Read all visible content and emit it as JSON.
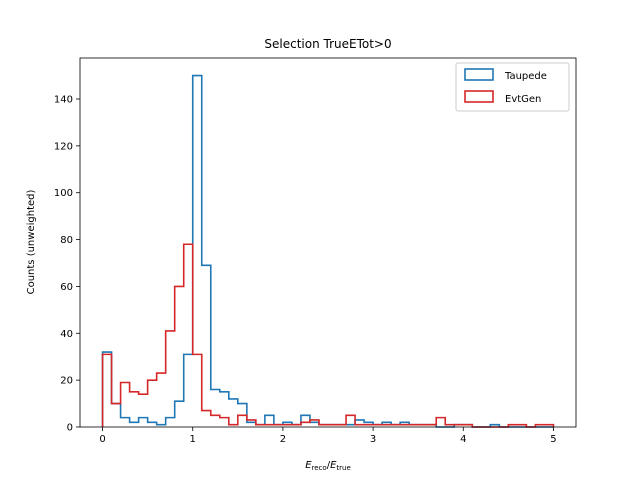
{
  "chart_data": {
    "type": "histogram-step",
    "title": "Selection TrueETot>0",
    "xlabel": {
      "main": "E",
      "sub1": "reco",
      "sep": "/",
      "sub2": "true"
    },
    "ylabel": "Counts (unweighted)",
    "xlim": [
      -0.25,
      5.25
    ],
    "ylim": [
      0,
      157.5
    ],
    "xticks": [
      0,
      1,
      2,
      3,
      4,
      5
    ],
    "yticks": [
      0,
      20,
      40,
      60,
      80,
      100,
      120,
      140
    ],
    "xtick_labels": [
      "0",
      "1",
      "2",
      "3",
      "4",
      "5"
    ],
    "ytick_labels": [
      "0",
      "20",
      "40",
      "60",
      "80",
      "100",
      "120",
      "140"
    ],
    "bin_edges": [
      0,
      0.1,
      0.2,
      0.3,
      0.4,
      0.5,
      0.6,
      0.7,
      0.8,
      0.9,
      1.0,
      1.1,
      1.2,
      1.3,
      1.4,
      1.5,
      1.6,
      1.7,
      1.8,
      1.9,
      2.0,
      2.1,
      2.2,
      2.3,
      2.4,
      2.5,
      2.6,
      2.7,
      2.8,
      2.9,
      3.0,
      3.1,
      3.2,
      3.3,
      3.4,
      3.5,
      3.6,
      3.7,
      3.8,
      3.9,
      4.0,
      4.1,
      4.2,
      4.3,
      4.4,
      4.5,
      4.6,
      4.7,
      4.8,
      4.9,
      5.0
    ],
    "legend_position": "top-right",
    "series": [
      {
        "name": "Taupede",
        "color": "#1f77b4",
        "values": [
          32,
          10,
          4,
          2,
          4,
          2,
          1,
          4,
          11,
          31,
          150,
          69,
          16,
          15,
          12,
          10,
          2,
          1,
          5,
          1,
          2,
          1,
          5,
          2,
          1,
          1,
          1,
          1,
          3,
          2,
          1,
          2,
          1,
          2,
          1,
          1,
          1,
          0,
          0,
          1,
          1,
          0,
          0,
          1,
          0,
          0,
          0,
          0,
          0,
          0
        ]
      },
      {
        "name": "EvtGen",
        "color": "#d62728",
        "values": [
          31,
          10,
          19,
          15,
          14,
          20,
          23,
          41,
          60,
          78,
          31,
          7,
          5,
          4,
          1,
          5,
          3,
          1,
          1,
          1,
          1,
          1,
          2,
          3,
          1,
          1,
          1,
          5,
          1,
          1,
          1,
          1,
          1,
          1,
          1,
          1,
          1,
          4,
          1,
          1,
          1,
          0,
          0,
          0,
          0,
          1,
          1,
          0,
          1,
          1
        ]
      }
    ]
  }
}
